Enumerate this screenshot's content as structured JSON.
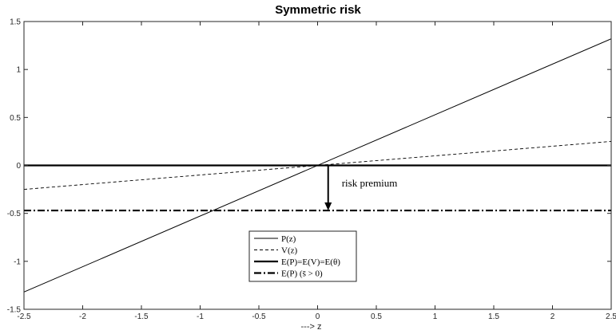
{
  "chart_data": {
    "type": "line",
    "title": "Symmetric risk",
    "xlabel": "---> z",
    "ylabel": "",
    "xlim": [
      -2.5,
      2.5
    ],
    "ylim": [
      -1.5,
      1.5
    ],
    "x_ticks": [
      "-2.5",
      "-2",
      "-1.5",
      "-1",
      "-0.5",
      "0",
      "0.5",
      "1",
      "1.5",
      "2",
      "2.5"
    ],
    "y_ticks": [
      "-1.5",
      "-1",
      "-0.5",
      "0",
      "0.5",
      "1",
      "1.5"
    ],
    "grid": false,
    "legend_position": "lower-center",
    "series": [
      {
        "name": "P(z)",
        "style": "solid-thin",
        "x": [
          -2.5,
          2.5
        ],
        "y": [
          -1.32,
          1.32
        ]
      },
      {
        "name": "V(z)",
        "style": "dashed",
        "x": [
          -2.5,
          2.5
        ],
        "y": [
          -0.25,
          0.25
        ]
      },
      {
        "name": "E(P)=E(V)=E(θ)",
        "style": "solid-thick",
        "x": [
          -2.5,
          2.5
        ],
        "y": [
          0,
          0
        ]
      },
      {
        "name": "E(P) (s̄ > 0)",
        "style": "dashdot-thick",
        "x": [
          -2.5,
          2.5
        ],
        "y": [
          -0.47,
          -0.47
        ]
      }
    ],
    "annotations": [
      {
        "text": "risk premium",
        "arrow_x": 0.09,
        "arrow_from_y": 0,
        "arrow_to_y": -0.47
      }
    ]
  }
}
